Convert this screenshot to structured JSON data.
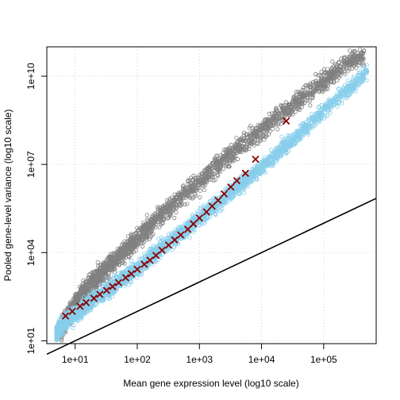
{
  "chart_data": {
    "type": "scatter",
    "title": "",
    "xlabel": "Mean gene expression level (log10 scale)",
    "ylabel": "Pooled gene-level variance (log10 scale)",
    "x_scale": "log10",
    "y_scale": "log10",
    "xlim": [
      3.5,
      700000
    ],
    "ylim": [
      8,
      100000000000
    ],
    "grid": true,
    "x_ticks": [
      {
        "value": 10,
        "label": "1e+01"
      },
      {
        "value": 100,
        "label": "1e+02"
      },
      {
        "value": 1000,
        "label": "1e+03"
      },
      {
        "value": 10000,
        "label": "1e+04"
      },
      {
        "value": 100000,
        "label": "1e+05"
      }
    ],
    "y_ticks": [
      {
        "value": 10,
        "label": "1e+01"
      },
      {
        "value": 10000,
        "label": "1e+04"
      },
      {
        "value": 10000000,
        "label": "1e+07"
      },
      {
        "value": 10000000000,
        "label": "1e+10"
      }
    ],
    "reference_line": {
      "x": [
        3.5,
        700000
      ],
      "y": [
        3.5,
        700000
      ],
      "color": "#000000"
    },
    "series": [
      {
        "marker": "circle",
        "color": "#808080",
        "description_of_trend": "upper cloud, log10(var) ~ 1.65*log10(mean) - 0.3",
        "points": [
          [
            6,
            30
          ],
          [
            8,
            80
          ],
          [
            10,
            200
          ],
          [
            20,
            1200
          ],
          [
            50,
            7000
          ],
          [
            100,
            30000
          ],
          [
            300,
            300000
          ],
          [
            1000,
            2500000
          ],
          [
            3000,
            20000000
          ],
          [
            10000,
            150000000
          ],
          [
            30000,
            1000000000
          ],
          [
            100000,
            7000000000
          ],
          [
            300000,
            40000000000
          ],
          [
            450000,
            55000000000
          ]
        ]
      },
      {
        "marker": "circle",
        "color": "#87ceeb",
        "description_of_trend": "lower cloud, log10(var) ~ 1.4*log10(mean) - 0.4",
        "points": [
          [
            5,
            20
          ],
          [
            8,
            60
          ],
          [
            10,
            80
          ],
          [
            20,
            250
          ],
          [
            50,
            1000
          ],
          [
            100,
            3000
          ],
          [
            300,
            20000
          ],
          [
            1000,
            150000
          ],
          [
            3000,
            1000000
          ],
          [
            10000,
            8000000
          ],
          [
            30000,
            60000000
          ],
          [
            100000,
            700000000
          ],
          [
            300000,
            5000000000
          ],
          [
            500000,
            15000000000
          ]
        ]
      },
      {
        "marker": "x",
        "color": "#8b0000",
        "description_of_trend": "binned fitted trend",
        "points": [
          [
            7,
            70
          ],
          [
            9,
            100
          ],
          [
            12,
            150
          ],
          [
            15,
            200
          ],
          [
            20,
            280
          ],
          [
            25,
            380
          ],
          [
            32,
            520
          ],
          [
            40,
            700
          ],
          [
            50,
            950
          ],
          [
            65,
            1400
          ],
          [
            80,
            1900
          ],
          [
            100,
            2700
          ],
          [
            130,
            4000
          ],
          [
            160,
            5500
          ],
          [
            200,
            8000
          ],
          [
            250,
            12000
          ],
          [
            320,
            18000
          ],
          [
            400,
            27000
          ],
          [
            500,
            40000
          ],
          [
            650,
            62000
          ],
          [
            800,
            95000
          ],
          [
            1000,
            150000
          ],
          [
            1300,
            240000
          ],
          [
            1600,
            380000
          ],
          [
            2000,
            600000
          ],
          [
            2500,
            1000000
          ],
          [
            3200,
            1700000
          ],
          [
            4000,
            2800000
          ],
          [
            5500,
            5000000
          ],
          [
            8000,
            15000000
          ],
          [
            25000,
            300000000
          ]
        ]
      }
    ]
  }
}
